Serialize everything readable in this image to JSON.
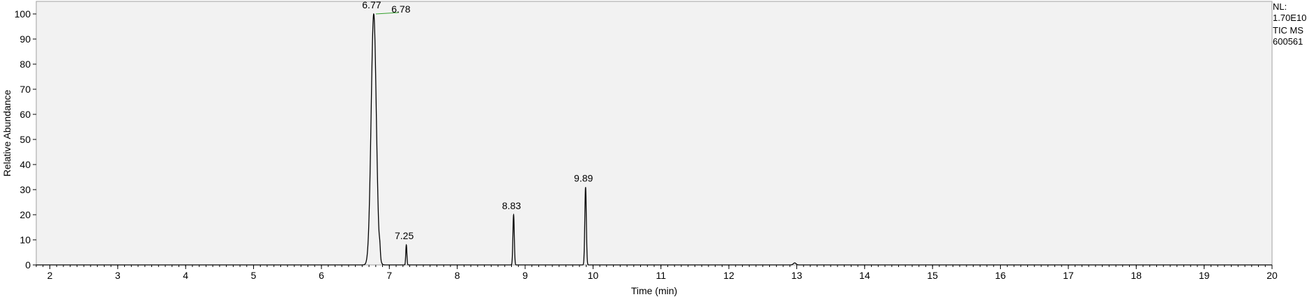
{
  "chart_data": {
    "type": "line",
    "title": "",
    "xlabel": "Time (min)",
    "ylabel": "Relative Abundance",
    "xlim": [
      1.8,
      20
    ],
    "ylim": [
      0,
      100
    ],
    "x_ticks": [
      2,
      3,
      4,
      5,
      6,
      7,
      8,
      9,
      10,
      11,
      12,
      13,
      14,
      15,
      16,
      17,
      18,
      19,
      20
    ],
    "y_ticks": [
      0,
      10,
      20,
      30,
      40,
      50,
      60,
      70,
      80,
      90,
      100
    ],
    "grid": false,
    "background": "#f2f2f2",
    "trace_color": "#000000",
    "annotation_line_color": "#33a02c",
    "peaks": [
      {
        "rt": 6.77,
        "height": 100,
        "label": "6.77",
        "width": 0.038
      },
      {
        "rt": 6.86,
        "height": 3.5,
        "label": "",
        "width": 0.008
      },
      {
        "rt": 7.25,
        "height": 8,
        "label": "7.25",
        "width": 0.008
      },
      {
        "rt": 8.83,
        "height": 20,
        "label": "8.83",
        "width": 0.01
      },
      {
        "rt": 9.89,
        "height": 31,
        "label": "9.89",
        "width": 0.011
      },
      {
        "rt": 12.97,
        "height": 0.8,
        "label": "",
        "width": 0.02
      }
    ],
    "annotations": [
      {
        "label": "6.78",
        "rt": 6.78,
        "y": 100
      }
    ],
    "trace_info": {
      "nl_label": "NL:",
      "nl_value": "1.70E10",
      "trace_type": "TIC  MS",
      "file": "600561"
    }
  }
}
